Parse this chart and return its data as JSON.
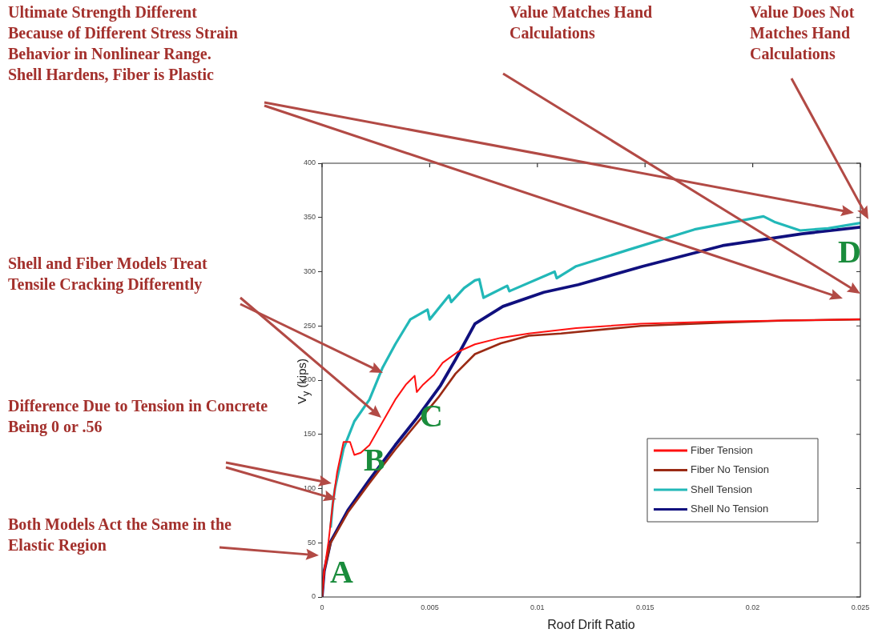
{
  "chart_data": {
    "type": "line",
    "xlabel": "Roof Drift Ratio",
    "ylabel": "V$_{y}$ (kips)",
    "xlim": [
      0,
      0.025
    ],
    "xticks": [
      0,
      0.005,
      0.01,
      0.015,
      0.02,
      0.025
    ],
    "ylim": [
      0,
      400
    ],
    "yticks": [
      0,
      50,
      100,
      150,
      200,
      250,
      300,
      350,
      400
    ],
    "grid": false,
    "legend": "bottom right",
    "marker": "none",
    "line_style": "solid",
    "series": [
      {
        "name": "Fiber Tension",
        "color": "#ff1010",
        "x": [
          0,
          0.0001,
          0.0003,
          0.0005,
          0.0007,
          0.001,
          0.0013,
          0.0015,
          0.0018,
          0.0022,
          0.0028,
          0.0034,
          0.0039,
          0.0043,
          0.0044,
          0.0047,
          0.0052,
          0.0056,
          0.0063,
          0.0071,
          0.0083,
          0.0096,
          0.0118,
          0.0148,
          0.0185,
          0.0215,
          0.025
        ],
        "values": [
          0,
          24,
          51,
          86,
          115,
          143,
          143,
          131,
          133,
          140,
          161,
          182,
          196,
          204,
          189,
          196,
          205,
          216,
          226,
          233,
          239,
          243,
          248,
          252,
          254,
          255,
          256
        ]
      },
      {
        "name": "Fiber No Tension",
        "color": "#9a2a14",
        "x": [
          0,
          0.0001,
          0.0004,
          0.0012,
          0.0022,
          0.0034,
          0.0044,
          0.0054,
          0.0062,
          0.0071,
          0.0083,
          0.0096,
          0.0111,
          0.0148,
          0.0185,
          0.0215,
          0.025
        ],
        "values": [
          0,
          24,
          50,
          78,
          105,
          136,
          160,
          184,
          206,
          224,
          234,
          241,
          243,
          250,
          253,
          255,
          256
        ]
      },
      {
        "name": "Shell Tension",
        "color": "#22b8b8",
        "x": [
          0.0004,
          0.0005,
          0.0006,
          0.001,
          0.0015,
          0.0022,
          0.0028,
          0.0034,
          0.0041,
          0.0049,
          0.005,
          0.0059,
          0.006,
          0.0066,
          0.0071,
          0.0073,
          0.0075,
          0.0086,
          0.0087,
          0.0108,
          0.0109,
          0.0118,
          0.0142,
          0.0173,
          0.0205,
          0.021,
          0.0222,
          0.0235,
          0.025
        ],
        "values": [
          64,
          86,
          100,
          137,
          162,
          182,
          211,
          233,
          256,
          265,
          256,
          278,
          272,
          285,
          292,
          293,
          276,
          287,
          282,
          300,
          294,
          305,
          320,
          339,
          351,
          346,
          338,
          340,
          345
        ]
      },
      {
        "name": "Shell No Tension",
        "color": "#10107e",
        "x": [
          0,
          0.0001,
          0.0004,
          0.0012,
          0.0022,
          0.0034,
          0.0044,
          0.0055,
          0.0062,
          0.0071,
          0.0084,
          0.0103,
          0.0119,
          0.0149,
          0.0186,
          0.0223,
          0.025
        ],
        "values": [
          0,
          24,
          51,
          80,
          108,
          140,
          165,
          195,
          219,
          252,
          268,
          281,
          288,
          305,
          324,
          335,
          341
        ]
      }
    ],
    "annotations": [
      "Ultimate Strength Different Because of Different Stress Strain Behavior in Nonlinear Range. Shell Hardens, Fiber is Plastic",
      "Value Matches Hand Calculations",
      "Value Does Not Matches Hand Calculations",
      "Shell and Fiber Models Treat Tensile Cracking Differently",
      "Difference Due to Tension in Concrete Being 0 or .56",
      "Both Models Act the Same in the Elastic Region",
      "A",
      "B",
      "C",
      "D"
    ]
  }
}
